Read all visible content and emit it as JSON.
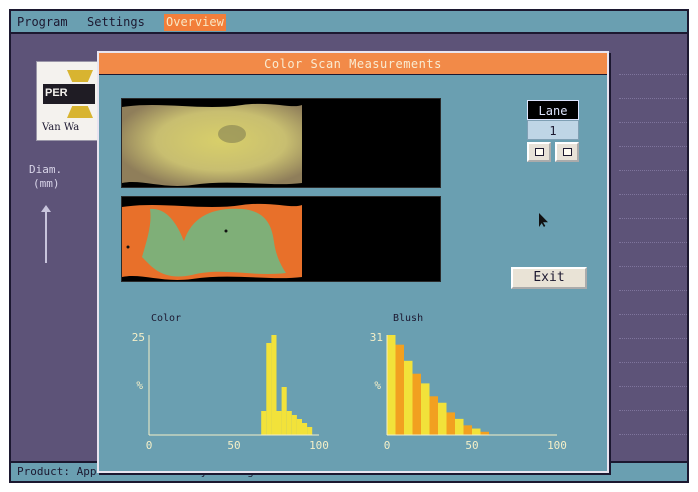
{
  "menu": {
    "items": [
      "Program",
      "Settings",
      "Overview"
    ],
    "active": "Overview"
  },
  "logo": {
    "per_text": "PER",
    "name_text": "Van Wa"
  },
  "left_label": {
    "line1": "Diam.",
    "line2": "(mm)"
  },
  "status": {
    "product": "Product: Apple",
    "variety": "Variety: Jonagold"
  },
  "dialog": {
    "title": "Color Scan Measurements",
    "lane_label": "Lane",
    "lane_value": "1",
    "exit_label": "Exit"
  },
  "colors": {
    "menu_bg": "#6a9fb1",
    "dialog_title_bg": "#f28a48",
    "hist_yellow": "#f2e23a",
    "hist_orange": "#f2a020",
    "fruit_green": "#7faf78",
    "fruit_orange": "#e8702a"
  },
  "icons": [
    "left-arrow-icon",
    "right-arrow-icon",
    "mouse-cursor-icon"
  ],
  "chart_data": [
    {
      "type": "bar",
      "title": "Color",
      "xlim": [
        0,
        100
      ],
      "ylim": [
        0,
        25
      ],
      "x_ticks": [
        "0",
        "50",
        "100"
      ],
      "y_ticks": [
        "25",
        "%"
      ],
      "bars": [
        {
          "x": 66,
          "value": 6
        },
        {
          "x": 69,
          "value": 23
        },
        {
          "x": 72,
          "value": 25
        },
        {
          "x": 75,
          "value": 6
        },
        {
          "x": 78,
          "value": 12
        },
        {
          "x": 81,
          "value": 6
        },
        {
          "x": 84,
          "value": 5
        },
        {
          "x": 87,
          "value": 4
        },
        {
          "x": 90,
          "value": 3
        },
        {
          "x": 93,
          "value": 2
        }
      ],
      "bar_width": 3
    },
    {
      "type": "bar",
      "title": "Blush",
      "xlim": [
        0,
        100
      ],
      "ylim": [
        0,
        31
      ],
      "x_ticks": [
        "0",
        "50",
        "100"
      ],
      "y_ticks": [
        "31",
        "%"
      ],
      "bars": [
        {
          "x": 0,
          "value": 31
        },
        {
          "x": 5,
          "value": 28
        },
        {
          "x": 10,
          "value": 23
        },
        {
          "x": 15,
          "value": 19
        },
        {
          "x": 20,
          "value": 16
        },
        {
          "x": 25,
          "value": 12
        },
        {
          "x": 30,
          "value": 10
        },
        {
          "x": 35,
          "value": 7
        },
        {
          "x": 40,
          "value": 5
        },
        {
          "x": 45,
          "value": 3
        },
        {
          "x": 50,
          "value": 2
        },
        {
          "x": 55,
          "value": 1
        }
      ],
      "bar_width": 5
    }
  ]
}
